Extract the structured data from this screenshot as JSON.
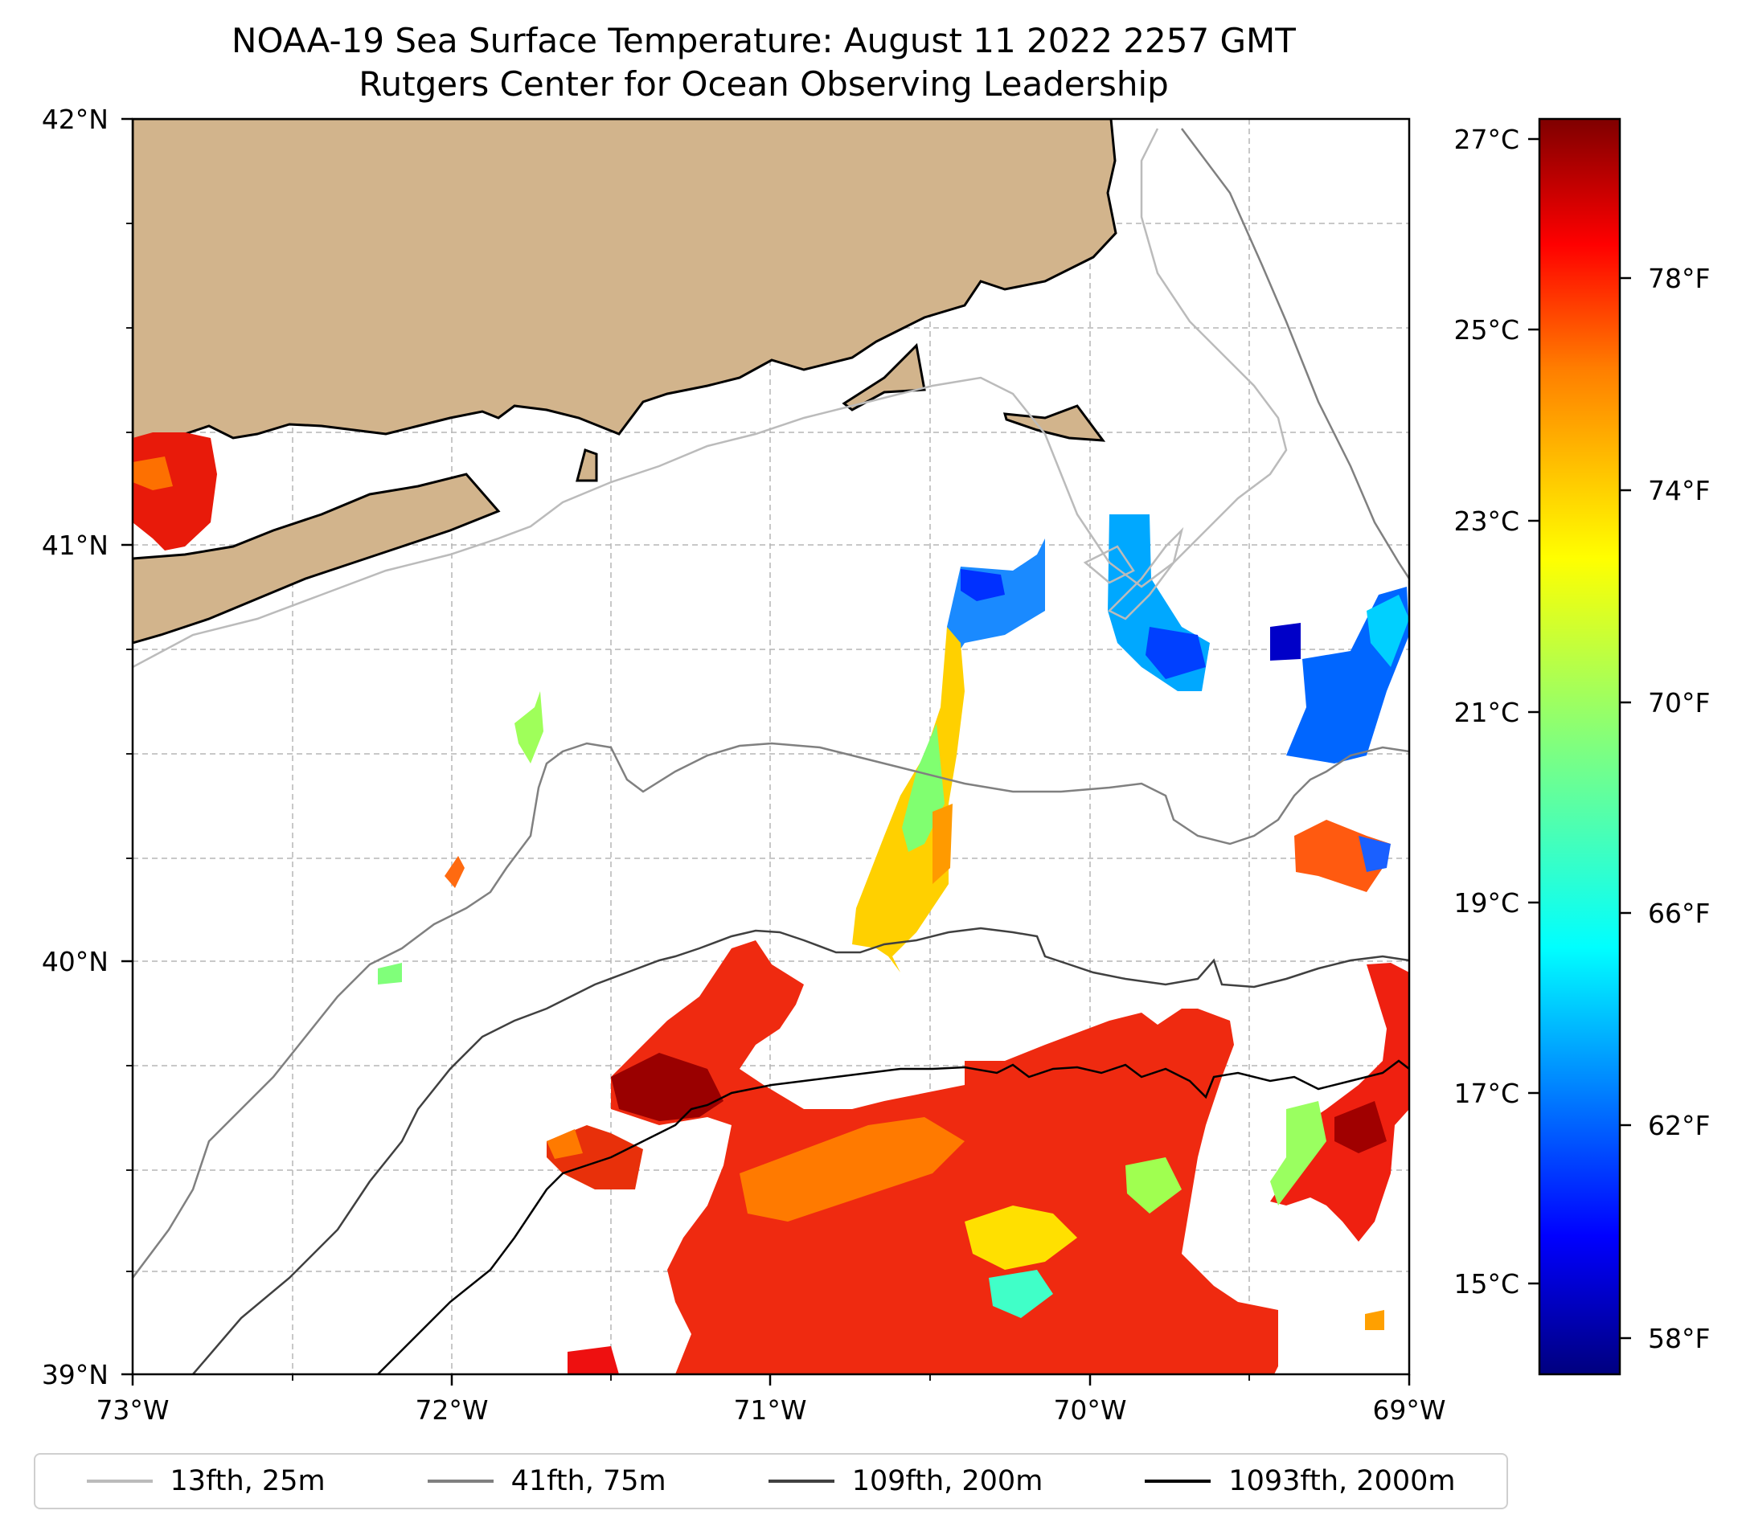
{
  "title": {
    "line1": "NOAA-19 Sea Surface Temperature: August 11 2022 2257 GMT",
    "line2": "Rutgers Center for Ocean Observing Leadership"
  },
  "map": {
    "type": "sea-surface-temperature-map",
    "lon_range": [
      -73,
      -69
    ],
    "lat_range": [
      39,
      42
    ],
    "land_color": "#d2b48c",
    "x_ticks": [
      "73°W",
      "72°W",
      "71°W",
      "70°W",
      "69°W"
    ],
    "y_ticks": [
      "42°N",
      "41°N",
      "40°N",
      "39°N"
    ],
    "grid": true
  },
  "colorbar": {
    "colormap": "jet",
    "celsius_ticks": [
      "27°C",
      "25°C",
      "23°C",
      "21°C",
      "19°C",
      "17°C",
      "15°C"
    ],
    "fahrenheit_ticks": [
      "78°F",
      "74°F",
      "70°F",
      "66°F",
      "62°F",
      "58°F"
    ],
    "colors": [
      "#00007f",
      "#0000ff",
      "#007fff",
      "#00ffff",
      "#7fff7f",
      "#ffff00",
      "#ff7f00",
      "#ff0000",
      "#7f0000"
    ]
  },
  "legend": {
    "placement": "bottom",
    "items": [
      {
        "label": "13fth, 25m",
        "color": "#bbbbbb"
      },
      {
        "label": "41fth, 75m",
        "color": "#808080"
      },
      {
        "label": "109fth, 200m",
        "color": "#404040"
      },
      {
        "label": "1093fth, 2000m",
        "color": "#000000"
      }
    ]
  }
}
